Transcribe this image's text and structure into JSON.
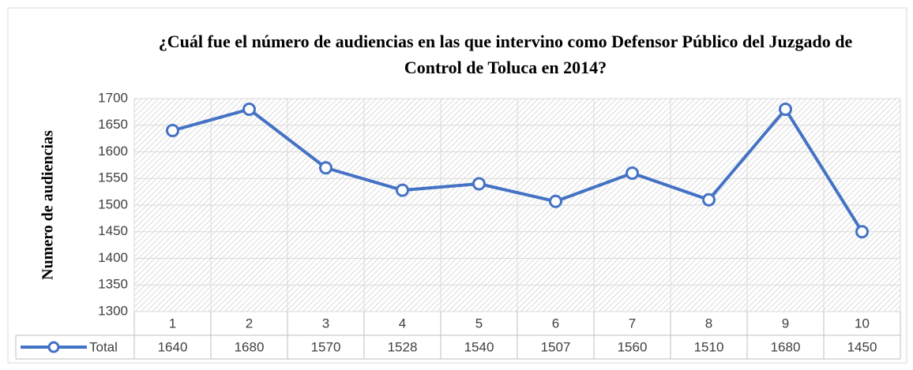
{
  "chart_data": {
    "type": "line",
    "title": "¿Cuál fue el número de audiencias en las que intervino como Defensor Público del Juzgado de Control de Toluca en 2014?",
    "y_label": "Numero de audiencias",
    "categories": [
      1,
      2,
      3,
      4,
      5,
      6,
      7,
      8,
      9,
      10
    ],
    "series": [
      {
        "name": "Total",
        "color": "#4472c4",
        "values": [
          1640,
          1680,
          1570,
          1528,
          1540,
          1507,
          1560,
          1510,
          1680,
          1450
        ]
      }
    ],
    "ylim": [
      1300,
      1700
    ],
    "yticks": [
      1300,
      1350,
      1400,
      1450,
      1500,
      1550,
      1600,
      1650,
      1700
    ],
    "grid": true,
    "data_table": true
  }
}
